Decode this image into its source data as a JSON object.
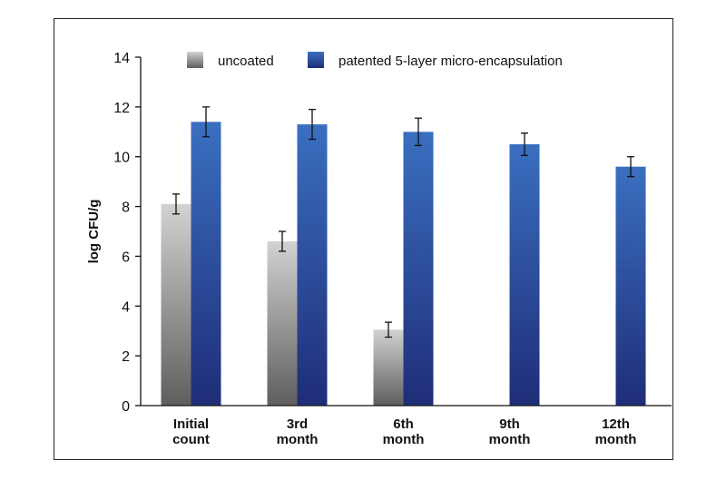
{
  "chart_data": {
    "type": "bar",
    "categories": [
      [
        "Initial",
        "count"
      ],
      [
        "3rd",
        "month"
      ],
      [
        "6th",
        "month"
      ],
      [
        "9th",
        "month"
      ],
      [
        "12th",
        "month"
      ]
    ],
    "series": [
      {
        "name": "uncoated",
        "values": [
          8.1,
          6.6,
          3.05,
          null,
          null
        ],
        "errors": [
          0.4,
          0.4,
          0.3,
          null,
          null
        ]
      },
      {
        "name": "patented 5-layer micro-encapsulation",
        "values": [
          11.4,
          11.3,
          11.0,
          10.5,
          9.6
        ],
        "errors": [
          0.6,
          0.6,
          0.55,
          0.45,
          0.4
        ]
      }
    ],
    "ylabel": "log CFU/g",
    "xlabel": "",
    "ylim": [
      0,
      14
    ],
    "yticks": [
      0,
      2,
      4,
      6,
      8,
      10,
      12,
      14
    ],
    "grid": false,
    "legend_position": "top",
    "colors": {
      "uncoated_top": "#d2d2d2",
      "uncoated_bottom": "#5e5e5e",
      "coated_top": "#3a6fc0",
      "coated_bottom": "#1f2d78",
      "axis": "#111111"
    }
  }
}
